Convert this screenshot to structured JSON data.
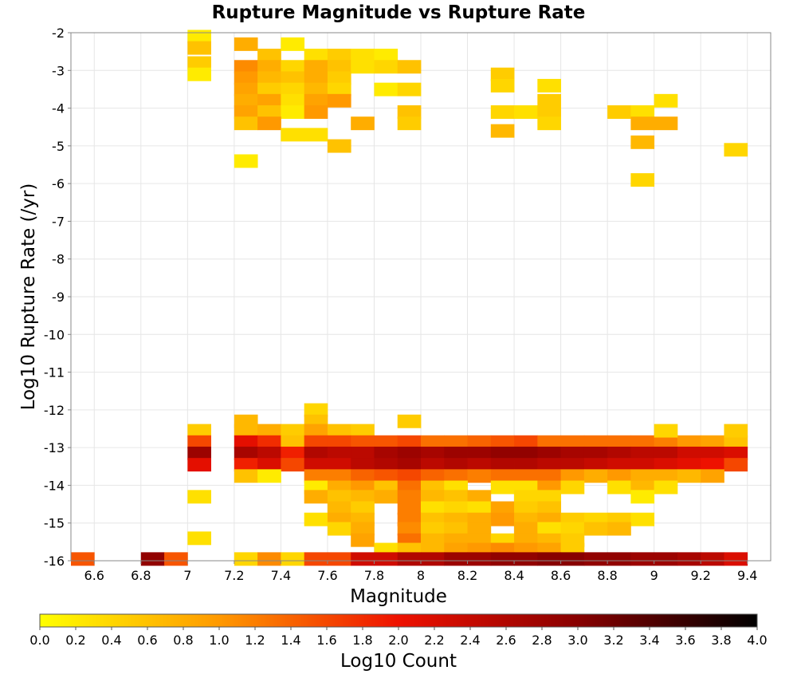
{
  "chart_data": {
    "type": "heatmap",
    "title": "Rupture Magnitude vs Rupture Rate",
    "xlabel": "Magnitude",
    "ylabel": "Log10 Rupture Rate (/yr)",
    "xlim": [
      6.5,
      9.5
    ],
    "ylim": [
      -16,
      -2
    ],
    "x_ticks": [
      "6.6",
      "6.8",
      "7",
      "7.2",
      "7.4",
      "7.6",
      "7.8",
      "8",
      "8.2",
      "8.4",
      "8.6",
      "8.8",
      "9",
      "9.2",
      "9.4"
    ],
    "y_ticks": [
      "-2",
      "-3",
      "-4",
      "-5",
      "-6",
      "-7",
      "-8",
      "-9",
      "-10",
      "-11",
      "-12",
      "-13",
      "-14",
      "-15",
      "-16"
    ],
    "x_bin_width": 0.1,
    "y_bin_width": 0.35,
    "grid": true,
    "colorbar": {
      "label": "Log10 Count",
      "range": [
        0,
        4
      ],
      "ticks": [
        "0.0",
        "0.2",
        "0.4",
        "0.6",
        "0.8",
        "1.0",
        "1.2",
        "1.4",
        "1.6",
        "1.8",
        "2.0",
        "2.2",
        "2.4",
        "2.6",
        "2.8",
        "3.0",
        "3.2",
        "3.4",
        "3.6",
        "3.8",
        "4.0"
      ],
      "colors": [
        "#ffff00",
        "#ff9900",
        "#ee1100",
        "#880000",
        "#000000"
      ]
    },
    "cells_note": "each cell: [x_bin_center, y_bin_center, log10_count]",
    "cells": [
      [
        6.55,
        -15.95,
        1.5
      ],
      [
        6.85,
        -15.95,
        2.9
      ],
      [
        6.95,
        -15.95,
        1.5
      ],
      [
        7.05,
        -2.1,
        0.2
      ],
      [
        7.05,
        -2.4,
        0.6
      ],
      [
        7.05,
        -2.8,
        0.5
      ],
      [
        7.05,
        -3.1,
        0.2
      ],
      [
        7.25,
        -2.3,
        0.8
      ],
      [
        7.35,
        -2.6,
        0.6
      ],
      [
        7.45,
        -2.3,
        0.2
      ],
      [
        7.55,
        -2.6,
        0.3
      ],
      [
        7.65,
        -2.6,
        0.5
      ],
      [
        7.75,
        -2.6,
        0.3
      ],
      [
        7.85,
        -2.6,
        0.2
      ],
      [
        7.25,
        -2.9,
        1.1
      ],
      [
        7.35,
        -2.9,
        0.8
      ],
      [
        7.45,
        -2.9,
        0.4
      ],
      [
        7.55,
        -2.9,
        0.8
      ],
      [
        7.65,
        -2.9,
        0.6
      ],
      [
        7.75,
        -2.9,
        0.3
      ],
      [
        7.85,
        -2.9,
        0.4
      ],
      [
        7.95,
        -2.9,
        0.6
      ],
      [
        7.25,
        -3.2,
        1.0
      ],
      [
        7.35,
        -3.2,
        0.7
      ],
      [
        7.45,
        -3.2,
        0.6
      ],
      [
        7.55,
        -3.2,
        0.8
      ],
      [
        7.65,
        -3.2,
        0.5
      ],
      [
        7.25,
        -3.5,
        0.9
      ],
      [
        7.35,
        -3.5,
        0.5
      ],
      [
        7.45,
        -3.5,
        0.4
      ],
      [
        7.55,
        -3.5,
        0.7
      ],
      [
        7.65,
        -3.5,
        0.4
      ],
      [
        7.85,
        -3.5,
        0.2
      ],
      [
        7.95,
        -3.5,
        0.4
      ],
      [
        7.25,
        -3.8,
        0.8
      ],
      [
        7.35,
        -3.8,
        0.9
      ],
      [
        7.45,
        -3.8,
        0.3
      ],
      [
        7.55,
        -3.8,
        0.9
      ],
      [
        7.65,
        -3.8,
        1.0
      ],
      [
        7.25,
        -4.1,
        0.9
      ],
      [
        7.35,
        -4.1,
        0.6
      ],
      [
        7.45,
        -4.1,
        0.2
      ],
      [
        7.55,
        -4.1,
        1.0
      ],
      [
        7.95,
        -4.1,
        0.6
      ],
      [
        7.25,
        -4.4,
        0.6
      ],
      [
        7.35,
        -4.4,
        1.0
      ],
      [
        7.75,
        -4.4,
        0.8
      ],
      [
        7.95,
        -4.4,
        0.5
      ],
      [
        7.45,
        -4.7,
        0.3
      ],
      [
        7.55,
        -4.7,
        0.3
      ],
      [
        7.65,
        -5.0,
        0.6
      ],
      [
        7.25,
        -5.4,
        0.2
      ],
      [
        8.35,
        -3.1,
        0.5
      ],
      [
        8.35,
        -3.4,
        0.4
      ],
      [
        8.35,
        -4.1,
        0.4
      ],
      [
        8.45,
        -4.1,
        0.3
      ],
      [
        8.35,
        -4.6,
        0.7
      ],
      [
        8.55,
        -3.4,
        0.3
      ],
      [
        8.55,
        -3.8,
        0.5
      ],
      [
        8.55,
        -4.1,
        0.5
      ],
      [
        8.55,
        -4.4,
        0.4
      ],
      [
        8.85,
        -4.1,
        0.5
      ],
      [
        8.95,
        -4.1,
        0.3
      ],
      [
        9.05,
        -3.8,
        0.3
      ],
      [
        8.95,
        -4.4,
        0.8
      ],
      [
        9.05,
        -4.4,
        0.8
      ],
      [
        8.95,
        -4.9,
        0.7
      ],
      [
        8.95,
        -5.9,
        0.4
      ],
      [
        9.35,
        -5.1,
        0.4
      ],
      [
        7.25,
        -12.3,
        0.7
      ],
      [
        7.55,
        -12.0,
        0.4
      ],
      [
        7.55,
        -12.3,
        0.6
      ],
      [
        7.95,
        -12.3,
        0.5
      ],
      [
        7.05,
        -12.55,
        0.5
      ],
      [
        7.05,
        -12.85,
        1.6
      ],
      [
        7.05,
        -13.15,
        2.8
      ],
      [
        7.05,
        -13.45,
        2.1
      ],
      [
        7.25,
        -12.55,
        0.7
      ],
      [
        7.35,
        -12.55,
        0.8
      ],
      [
        7.45,
        -12.55,
        0.5
      ],
      [
        7.55,
        -12.55,
        0.9
      ],
      [
        7.65,
        -12.55,
        0.6
      ],
      [
        7.75,
        -12.55,
        0.5
      ],
      [
        7.25,
        -12.85,
        2.1
      ],
      [
        7.35,
        -12.85,
        1.8
      ],
      [
        7.45,
        -12.85,
        0.6
      ],
      [
        7.55,
        -12.85,
        1.6
      ],
      [
        7.65,
        -12.85,
        1.6
      ],
      [
        7.75,
        -12.85,
        1.5
      ],
      [
        7.85,
        -12.85,
        1.5
      ],
      [
        7.95,
        -12.85,
        1.6
      ],
      [
        8.05,
        -12.85,
        1.3
      ],
      [
        8.15,
        -12.85,
        1.3
      ],
      [
        8.25,
        -12.85,
        1.4
      ],
      [
        8.35,
        -12.85,
        1.5
      ],
      [
        8.45,
        -12.85,
        1.6
      ],
      [
        8.55,
        -12.85,
        1.3
      ],
      [
        8.65,
        -12.85,
        1.3
      ],
      [
        8.75,
        -12.85,
        1.3
      ],
      [
        8.85,
        -12.85,
        1.3
      ],
      [
        8.95,
        -12.85,
        1.3
      ],
      [
        9.05,
        -12.85,
        1.2
      ],
      [
        9.15,
        -12.85,
        1.0
      ],
      [
        9.25,
        -12.85,
        0.9
      ],
      [
        9.35,
        -12.85,
        0.6
      ],
      [
        9.05,
        -12.55,
        0.4
      ],
      [
        9.35,
        -12.55,
        0.5
      ],
      [
        7.25,
        -13.15,
        2.7
      ],
      [
        7.35,
        -13.15,
        2.5
      ],
      [
        7.45,
        -13.15,
        1.9
      ],
      [
        7.55,
        -13.15,
        2.6
      ],
      [
        7.65,
        -13.15,
        2.5
      ],
      [
        7.75,
        -13.15,
        2.5
      ],
      [
        7.85,
        -13.15,
        2.7
      ],
      [
        7.95,
        -13.15,
        2.8
      ],
      [
        8.05,
        -13.15,
        2.7
      ],
      [
        8.15,
        -13.15,
        2.8
      ],
      [
        8.25,
        -13.15,
        2.8
      ],
      [
        8.35,
        -13.15,
        2.9
      ],
      [
        8.45,
        -13.15,
        2.9
      ],
      [
        8.55,
        -13.15,
        2.8
      ],
      [
        8.65,
        -13.15,
        2.7
      ],
      [
        8.75,
        -13.15,
        2.7
      ],
      [
        8.85,
        -13.15,
        2.6
      ],
      [
        8.95,
        -13.15,
        2.5
      ],
      [
        9.05,
        -13.15,
        2.5
      ],
      [
        9.15,
        -13.15,
        2.3
      ],
      [
        9.25,
        -13.15,
        2.3
      ],
      [
        9.35,
        -13.15,
        2.2
      ],
      [
        7.25,
        -13.45,
        1.9
      ],
      [
        7.35,
        -13.45,
        2.2
      ],
      [
        7.45,
        -13.45,
        1.6
      ],
      [
        7.55,
        -13.45,
        2.3
      ],
      [
        7.65,
        -13.45,
        2.3
      ],
      [
        7.75,
        -13.45,
        2.5
      ],
      [
        7.85,
        -13.45,
        2.6
      ],
      [
        7.95,
        -13.45,
        2.7
      ],
      [
        8.05,
        -13.45,
        2.5
      ],
      [
        8.15,
        -13.45,
        2.6
      ],
      [
        8.25,
        -13.45,
        2.5
      ],
      [
        8.35,
        -13.45,
        2.6
      ],
      [
        8.45,
        -13.45,
        2.6
      ],
      [
        8.55,
        -13.45,
        2.5
      ],
      [
        8.65,
        -13.45,
        2.5
      ],
      [
        8.75,
        -13.45,
        2.4
      ],
      [
        8.85,
        -13.45,
        2.3
      ],
      [
        8.95,
        -13.45,
        2.3
      ],
      [
        9.05,
        -13.45,
        2.2
      ],
      [
        9.15,
        -13.45,
        2.1
      ],
      [
        9.25,
        -13.45,
        2.0
      ],
      [
        9.35,
        -13.45,
        1.6
      ],
      [
        7.25,
        -13.75,
        0.6
      ],
      [
        7.35,
        -13.75,
        0.2
      ],
      [
        7.55,
        -13.75,
        1.2
      ],
      [
        7.65,
        -13.75,
        1.2
      ],
      [
        7.75,
        -13.75,
        1.4
      ],
      [
        7.85,
        -13.75,
        1.5
      ],
      [
        7.95,
        -13.75,
        1.6
      ],
      [
        8.05,
        -13.75,
        1.4
      ],
      [
        8.15,
        -13.75,
        1.3
      ],
      [
        8.25,
        -13.75,
        1.2
      ],
      [
        8.35,
        -13.75,
        1.3
      ],
      [
        8.45,
        -13.75,
        1.3
      ],
      [
        8.55,
        -13.75,
        1.3
      ],
      [
        8.65,
        -13.75,
        1.0
      ],
      [
        8.75,
        -13.75,
        0.8
      ],
      [
        8.85,
        -13.75,
        1.0
      ],
      [
        8.95,
        -13.75,
        0.8
      ],
      [
        9.05,
        -13.75,
        0.8
      ],
      [
        9.15,
        -13.75,
        0.7
      ],
      [
        9.25,
        -13.75,
        0.9
      ],
      [
        7.55,
        -14.05,
        0.2
      ],
      [
        7.65,
        -14.05,
        0.8
      ],
      [
        7.75,
        -14.05,
        1.0
      ],
      [
        7.85,
        -14.05,
        0.6
      ],
      [
        7.95,
        -14.05,
        1.3
      ],
      [
        8.05,
        -14.05,
        0.6
      ],
      [
        8.15,
        -14.05,
        0.3
      ],
      [
        8.35,
        -14.05,
        0.3
      ],
      [
        8.45,
        -14.05,
        0.3
      ],
      [
        8.55,
        -14.05,
        1.0
      ],
      [
        8.65,
        -14.05,
        0.4
      ],
      [
        8.85,
        -14.05,
        0.3
      ],
      [
        8.95,
        -14.05,
        0.7
      ],
      [
        9.05,
        -14.05,
        0.3
      ],
      [
        7.05,
        -14.3,
        0.3
      ],
      [
        7.55,
        -14.3,
        0.8
      ],
      [
        7.65,
        -14.3,
        0.6
      ],
      [
        7.75,
        -14.3,
        0.7
      ],
      [
        7.85,
        -14.3,
        0.8
      ],
      [
        7.95,
        -14.3,
        1.2
      ],
      [
        8.05,
        -14.3,
        0.7
      ],
      [
        8.15,
        -14.3,
        0.6
      ],
      [
        8.25,
        -14.3,
        0.8
      ],
      [
        8.45,
        -14.3,
        0.4
      ],
      [
        8.55,
        -14.3,
        0.4
      ],
      [
        8.95,
        -14.3,
        0.2
      ],
      [
        7.65,
        -14.6,
        0.7
      ],
      [
        7.75,
        -14.6,
        0.5
      ],
      [
        7.95,
        -14.6,
        1.2
      ],
      [
        8.05,
        -14.6,
        0.3
      ],
      [
        8.15,
        -14.6,
        0.4
      ],
      [
        8.25,
        -14.6,
        0.3
      ],
      [
        8.35,
        -14.6,
        0.9
      ],
      [
        8.45,
        -14.6,
        0.5
      ],
      [
        8.55,
        -14.6,
        0.6
      ],
      [
        7.55,
        -14.9,
        0.3
      ],
      [
        7.65,
        -14.9,
        0.8
      ],
      [
        7.75,
        -14.9,
        0.7
      ],
      [
        7.95,
        -14.9,
        1.2
      ],
      [
        8.05,
        -14.9,
        0.6
      ],
      [
        8.15,
        -14.9,
        0.7
      ],
      [
        8.25,
        -14.9,
        0.8
      ],
      [
        8.35,
        -14.9,
        1.0
      ],
      [
        8.45,
        -14.9,
        0.7
      ],
      [
        8.55,
        -14.9,
        0.8
      ],
      [
        8.65,
        -14.9,
        0.5
      ],
      [
        8.75,
        -14.9,
        0.4
      ],
      [
        8.85,
        -14.9,
        0.5
      ],
      [
        8.95,
        -14.9,
        0.3
      ],
      [
        7.05,
        -15.4,
        0.3
      ],
      [
        7.65,
        -15.15,
        0.4
      ],
      [
        7.75,
        -15.15,
        0.8
      ],
      [
        7.95,
        -15.15,
        1.1
      ],
      [
        8.05,
        -15.15,
        0.5
      ],
      [
        8.15,
        -15.15,
        0.6
      ],
      [
        8.25,
        -15.15,
        0.8
      ],
      [
        8.45,
        -15.15,
        0.8
      ],
      [
        8.55,
        -15.15,
        0.3
      ],
      [
        8.65,
        -15.15,
        0.4
      ],
      [
        8.75,
        -15.15,
        0.6
      ],
      [
        8.85,
        -15.15,
        0.7
      ],
      [
        7.75,
        -15.45,
        0.9
      ],
      [
        7.95,
        -15.45,
        1.3
      ],
      [
        8.05,
        -15.45,
        0.7
      ],
      [
        8.15,
        -15.45,
        0.8
      ],
      [
        8.25,
        -15.45,
        0.8
      ],
      [
        8.35,
        -15.45,
        0.4
      ],
      [
        8.45,
        -15.45,
        0.8
      ],
      [
        8.55,
        -15.45,
        0.7
      ],
      [
        8.65,
        -15.45,
        0.5
      ],
      [
        7.85,
        -15.7,
        0.3
      ],
      [
        7.95,
        -15.7,
        0.6
      ],
      [
        8.05,
        -15.7,
        0.7
      ],
      [
        8.15,
        -15.7,
        0.9
      ],
      [
        8.25,
        -15.7,
        1.0
      ],
      [
        8.35,
        -15.7,
        1.1
      ],
      [
        8.45,
        -15.7,
        1.0
      ],
      [
        8.55,
        -15.7,
        0.9
      ],
      [
        8.65,
        -15.7,
        0.5
      ],
      [
        7.25,
        -15.95,
        0.4
      ],
      [
        7.35,
        -15.95,
        1.1
      ],
      [
        7.45,
        -15.95,
        0.4
      ],
      [
        7.55,
        -15.95,
        1.6
      ],
      [
        7.65,
        -15.95,
        1.6
      ],
      [
        7.75,
        -15.95,
        2.3
      ],
      [
        7.85,
        -15.95,
        2.3
      ],
      [
        7.95,
        -15.95,
        2.6
      ],
      [
        8.05,
        -15.95,
        2.6
      ],
      [
        8.15,
        -15.95,
        2.8
      ],
      [
        8.25,
        -15.95,
        2.8
      ],
      [
        8.35,
        -15.95,
        2.9
      ],
      [
        8.45,
        -15.95,
        2.9
      ],
      [
        8.55,
        -15.95,
        3.0
      ],
      [
        8.65,
        -15.95,
        3.0
      ],
      [
        8.75,
        -15.95,
        2.9
      ],
      [
        8.85,
        -15.95,
        2.9
      ],
      [
        8.95,
        -15.95,
        2.8
      ],
      [
        9.05,
        -15.95,
        2.8
      ],
      [
        9.15,
        -15.95,
        2.7
      ],
      [
        9.25,
        -15.95,
        2.5
      ],
      [
        9.35,
        -15.95,
        2.2
      ]
    ]
  }
}
